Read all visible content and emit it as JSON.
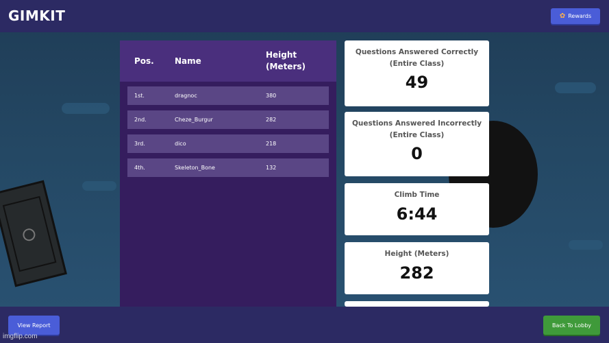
{
  "header": {
    "logo": "GIMKIT",
    "rewards_label": "Rewards"
  },
  "leaderboard": {
    "columns": {
      "pos": "Pos.",
      "name": "Name",
      "height": "Height (Meters)"
    },
    "rows": [
      {
        "pos": "1st.",
        "name": "dragnoc",
        "height": "380"
      },
      {
        "pos": "2nd.",
        "name": "Cheze_Burgur",
        "height": "282"
      },
      {
        "pos": "3rd.",
        "name": "dico",
        "height": "218"
      },
      {
        "pos": "4th.",
        "name": "Skeleton_Bone",
        "height": "132"
      }
    ]
  },
  "stats": [
    {
      "label_line1": "Questions Answered Correctly",
      "label_line2": "(Entire Class)",
      "value": "49"
    },
    {
      "label_line1": "Questions Answered Incorrectly",
      "label_line2": "(Entire Class)",
      "value": "0"
    },
    {
      "label_line1": "Climb Time",
      "value": "6:44"
    },
    {
      "label_line1": "Height (Meters)",
      "value": "282"
    }
  ],
  "footer": {
    "view_report_label": "View Report",
    "back_to_lobby_label": "Back To Lobby"
  },
  "watermark": "imgflip.com",
  "colors": {
    "bar": "#2c2a63",
    "primary_button": "#4a5dd8",
    "lobby_button": "#3f9a3a",
    "leaderboard": "#351d5e"
  }
}
